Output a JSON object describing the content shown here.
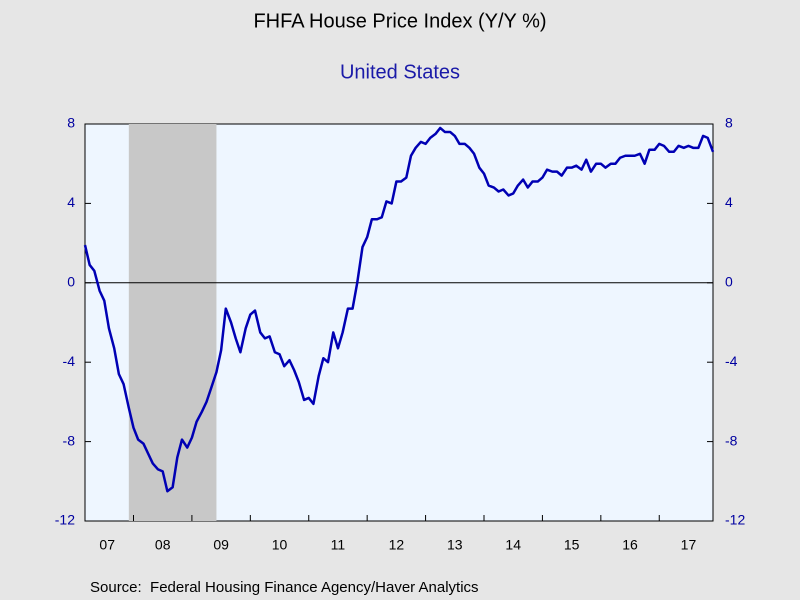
{
  "chart_data": {
    "type": "line",
    "title": "FHFA House Price Index (Y/Y %)",
    "subtitle": "United States",
    "source": "Source:  Federal Housing Finance Agency/Haver Analytics",
    "color": "#0000b4",
    "x": [
      2007.17,
      2007.25,
      2007.33,
      2007.42,
      2007.5,
      2007.58,
      2007.67,
      2007.75,
      2007.83,
      2007.92,
      2008.0,
      2008.08,
      2008.17,
      2008.25,
      2008.33,
      2008.42,
      2008.5,
      2008.58,
      2008.67,
      2008.75,
      2008.83,
      2008.92,
      2009.0,
      2009.08,
      2009.17,
      2009.25,
      2009.33,
      2009.42,
      2009.5,
      2009.58,
      2009.67,
      2009.75,
      2009.83,
      2009.92,
      2010.0,
      2010.08,
      2010.17,
      2010.25,
      2010.33,
      2010.42,
      2010.5,
      2010.58,
      2010.67,
      2010.75,
      2010.83,
      2010.92,
      2011.0,
      2011.08,
      2011.17,
      2011.25,
      2011.33,
      2011.42,
      2011.5,
      2011.58,
      2011.67,
      2011.75,
      2011.83,
      2011.92,
      2012.0,
      2012.08,
      2012.17,
      2012.25,
      2012.33,
      2012.42,
      2012.5,
      2012.58,
      2012.67,
      2012.75,
      2012.83,
      2012.92,
      2013.0,
      2013.08,
      2013.17,
      2013.25,
      2013.33,
      2013.42,
      2013.5,
      2013.58,
      2013.67,
      2013.75,
      2013.83,
      2013.92,
      2014.0,
      2014.08,
      2014.17,
      2014.25,
      2014.33,
      2014.42,
      2014.5,
      2014.58,
      2014.67,
      2014.75,
      2014.83,
      2014.92,
      2015.0,
      2015.08,
      2015.17,
      2015.25,
      2015.33,
      2015.42,
      2015.5,
      2015.58,
      2015.67,
      2015.75,
      2015.83,
      2015.92,
      2016.0,
      2016.08,
      2016.17,
      2016.25,
      2016.33,
      2016.42,
      2016.5,
      2016.58,
      2016.67,
      2016.75,
      2016.83,
      2016.92,
      2017.0,
      2017.08,
      2017.17,
      2017.25,
      2017.33,
      2017.42,
      2017.5,
      2017.58,
      2017.67,
      2017.75,
      2017.83,
      2017.92
    ],
    "values": [
      1.9,
      0.9,
      0.6,
      -0.4,
      -0.9,
      -2.3,
      -3.3,
      -4.6,
      -5.1,
      -6.3,
      -7.3,
      -7.9,
      -8.1,
      -8.6,
      -9.1,
      -9.4,
      -9.5,
      -10.5,
      -10.3,
      -8.8,
      -7.9,
      -8.3,
      -7.8,
      -7.0,
      -6.5,
      -6.0,
      -5.3,
      -4.5,
      -3.4,
      -1.3,
      -2.0,
      -2.8,
      -3.5,
      -2.3,
      -1.6,
      -1.4,
      -2.5,
      -2.8,
      -2.7,
      -3.5,
      -3.6,
      -4.2,
      -3.9,
      -4.4,
      -5.0,
      -5.9,
      -5.8,
      -6.1,
      -4.7,
      -3.8,
      -4.0,
      -2.5,
      -3.3,
      -2.5,
      -1.3,
      -1.3,
      0.0,
      1.8,
      2.3,
      3.2,
      3.2,
      3.3,
      4.1,
      4.0,
      5.1,
      5.1,
      5.3,
      6.4,
      6.8,
      7.1,
      7.0,
      7.3,
      7.5,
      7.8,
      7.6,
      7.6,
      7.4,
      7.0,
      7.0,
      6.8,
      6.5,
      5.8,
      5.5,
      4.9,
      4.8,
      4.6,
      4.7,
      4.4,
      4.5,
      4.9,
      5.2,
      4.8,
      5.1,
      5.1,
      5.3,
      5.7,
      5.6,
      5.6,
      5.4,
      5.8,
      5.8,
      5.9,
      5.7,
      6.2,
      5.6,
      6.0,
      6.0,
      5.8,
      6.0,
      6.0,
      6.3,
      6.4,
      6.4,
      6.4,
      6.5,
      6.0,
      6.7,
      6.7,
      7.0,
      6.9,
      6.6,
      6.6,
      6.9,
      6.8,
      6.9,
      6.8,
      6.8,
      7.4,
      7.3,
      6.6
    ],
    "xlim": [
      2007.17,
      2017.92
    ],
    "xticks": [
      {
        "value": 2007.55,
        "label": "07"
      },
      {
        "value": 2008.5,
        "label": "08"
      },
      {
        "value": 2009.5,
        "label": "09"
      },
      {
        "value": 2010.5,
        "label": "10"
      },
      {
        "value": 2011.5,
        "label": "11"
      },
      {
        "value": 2012.5,
        "label": "12"
      },
      {
        "value": 2013.5,
        "label": "13"
      },
      {
        "value": 2014.5,
        "label": "14"
      },
      {
        "value": 2015.5,
        "label": "15"
      },
      {
        "value": 2016.5,
        "label": "16"
      },
      {
        "value": 2017.5,
        "label": "17"
      }
    ],
    "year_ticks": [
      2008,
      2009,
      2010,
      2011,
      2012,
      2013,
      2014,
      2015,
      2016,
      2017
    ],
    "ylim": [
      -12,
      8
    ],
    "yticks": [
      8,
      4,
      0,
      -4,
      -8,
      -12
    ],
    "y2lim": [
      -12,
      8
    ],
    "y2ticks": [
      8,
      4,
      0,
      -4,
      -8,
      -12
    ],
    "zero_line": true,
    "recession": [
      {
        "from": 2007.92,
        "to": 2009.42
      }
    ]
  }
}
